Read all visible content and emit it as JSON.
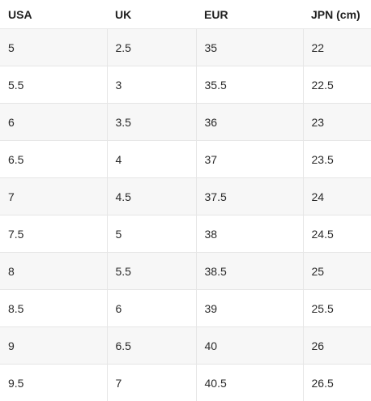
{
  "table": {
    "headers": [
      "USA",
      "UK",
      "EUR",
      "JPN (cm)"
    ],
    "rows": [
      [
        "5",
        "2.5",
        "35",
        "22"
      ],
      [
        "5.5",
        "3",
        "35.5",
        "22.5"
      ],
      [
        "6",
        "3.5",
        "36",
        "23"
      ],
      [
        "6.5",
        "4",
        "37",
        "23.5"
      ],
      [
        "7",
        "4.5",
        "37.5",
        "24"
      ],
      [
        "7.5",
        "5",
        "38",
        "24.5"
      ],
      [
        "8",
        "5.5",
        "38.5",
        "25"
      ],
      [
        "8.5",
        "6",
        "39",
        "25.5"
      ],
      [
        "9",
        "6.5",
        "40",
        "26"
      ],
      [
        "9.5",
        "7",
        "40.5",
        "26.5"
      ]
    ]
  }
}
